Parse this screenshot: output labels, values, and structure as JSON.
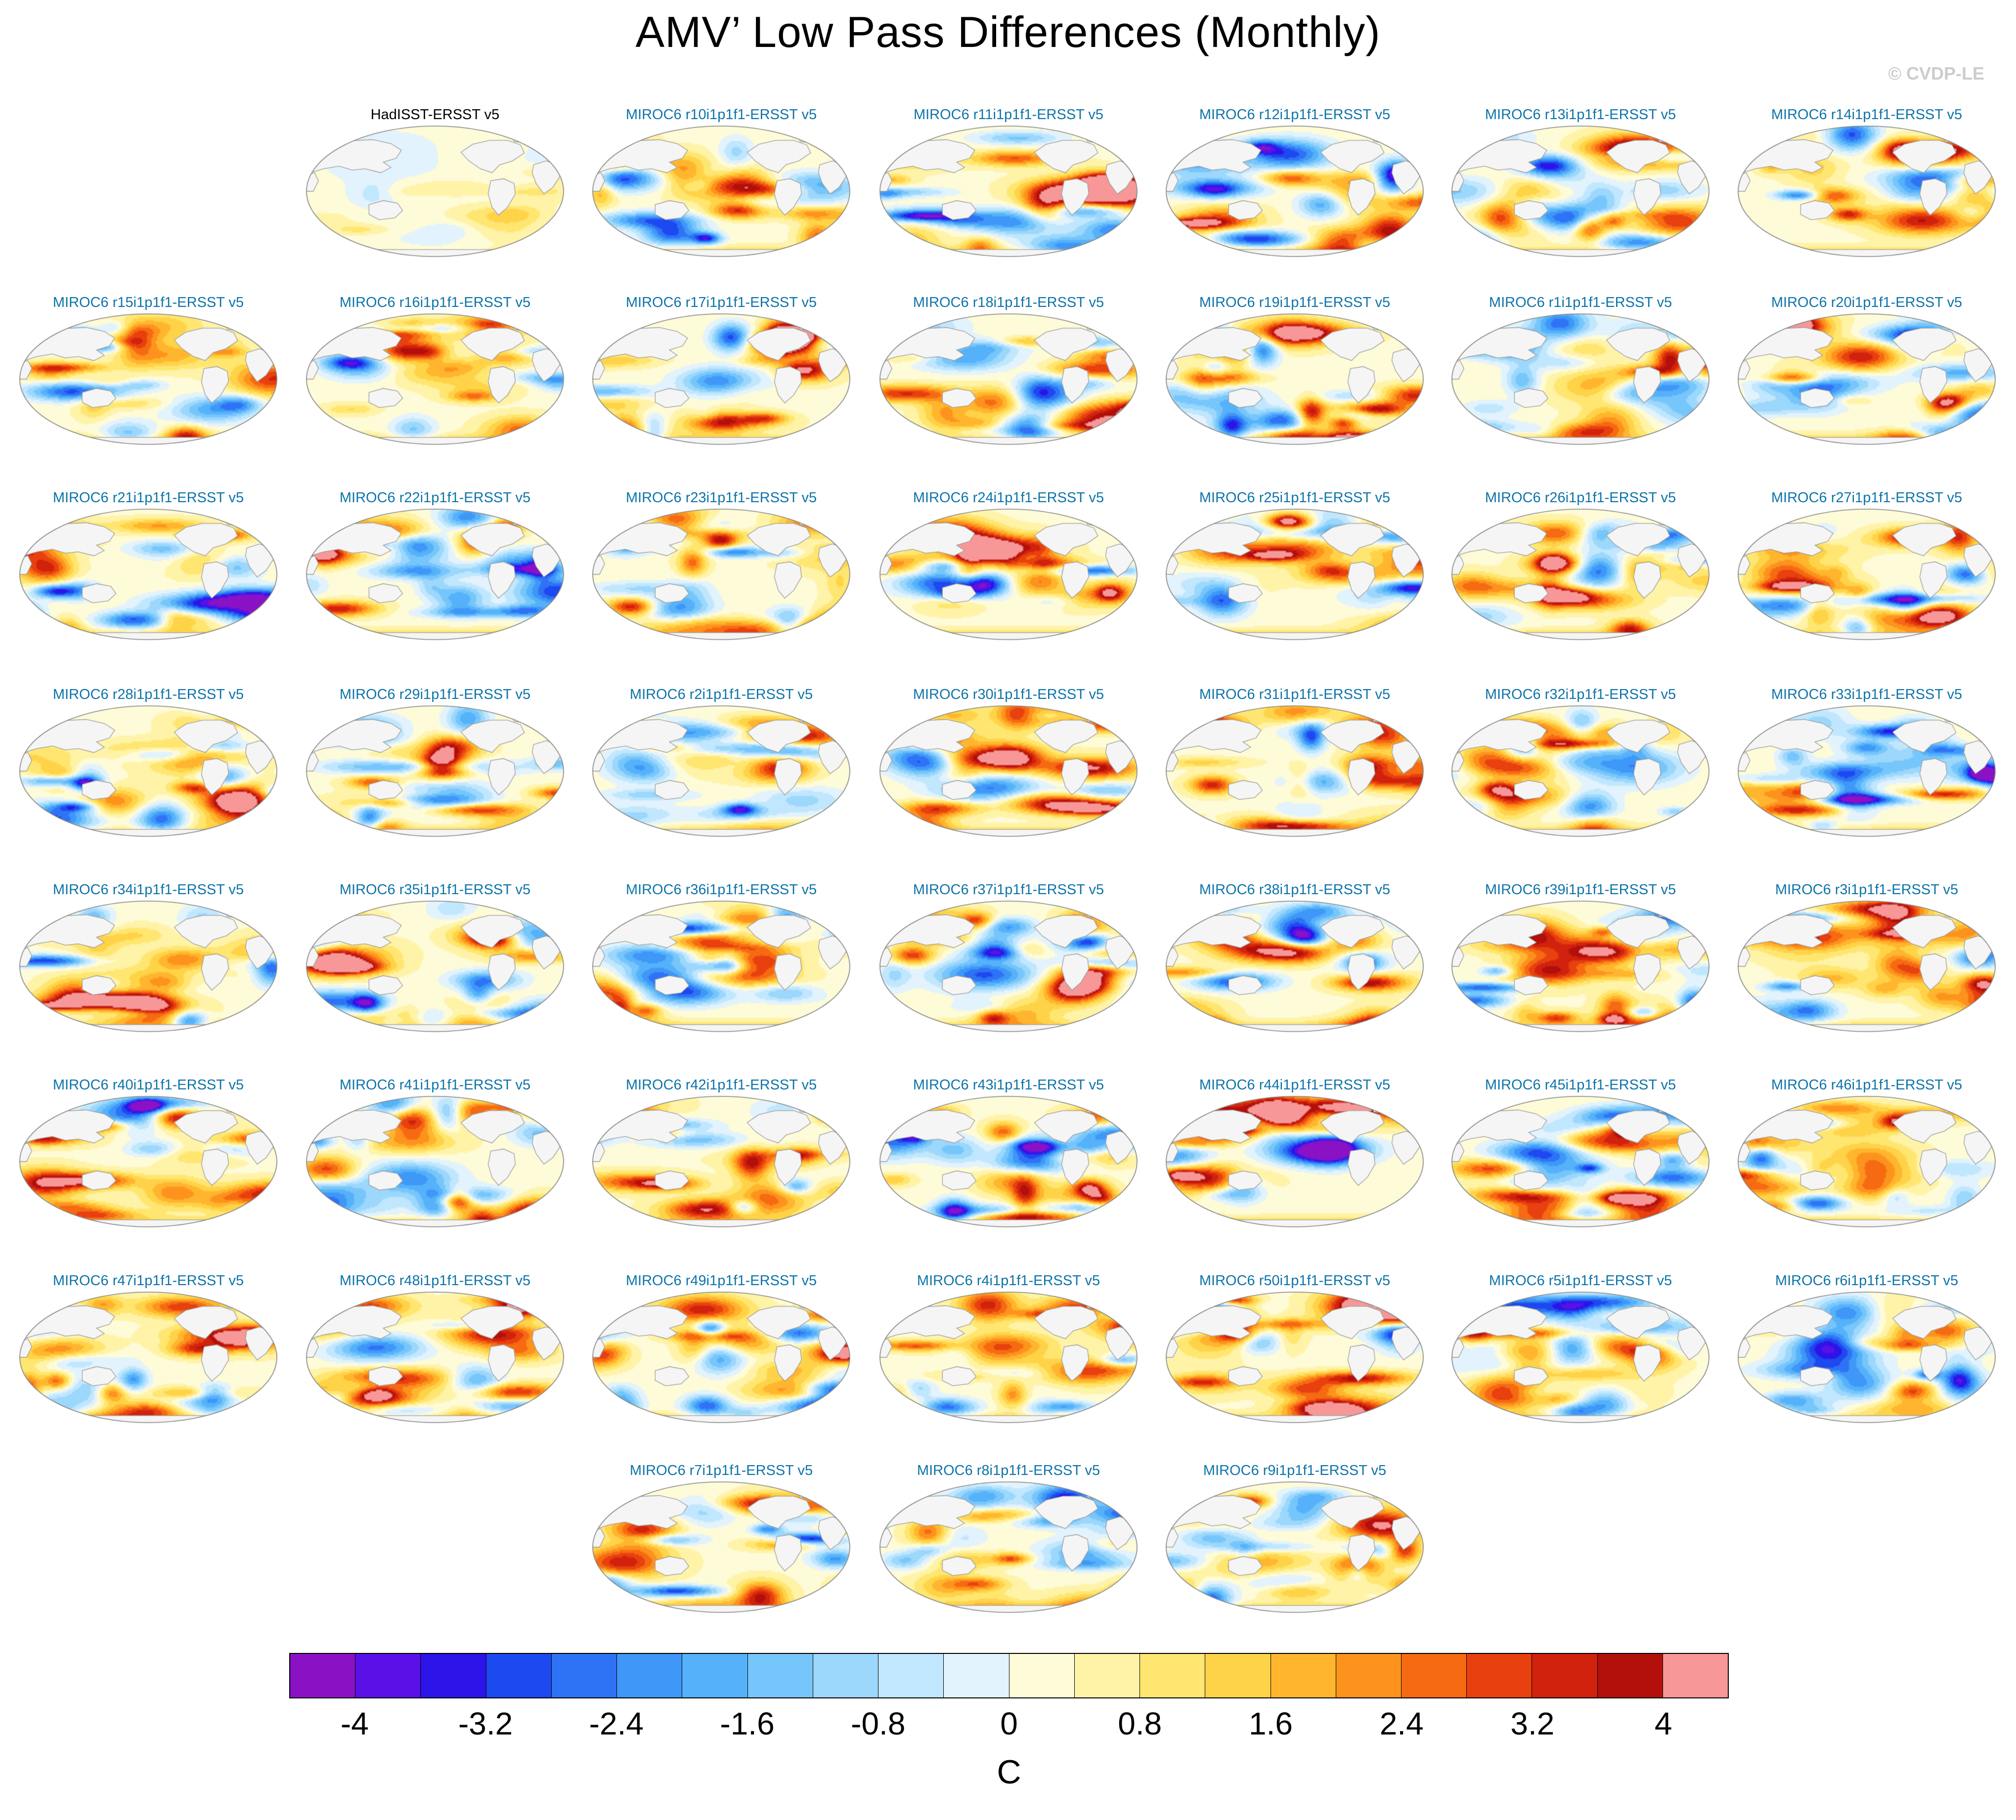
{
  "figure": {
    "title": "AMV’ Low Pass Differences (Monthly)",
    "watermark": "© CVDP-LE",
    "units_label": "C"
  },
  "chart_data": {
    "type": "heatmap",
    "subtype": "multi-panel global map grid (Robinson-style ellipse projections)",
    "title": "AMV’ Low Pass Differences (Monthly)",
    "n_panels": 51,
    "grid": {
      "columns": 7,
      "rows": 8
    },
    "units": "C",
    "panel_label_colors": {
      "observations": "#000000",
      "model": "#0e74a8"
    },
    "colorbar": {
      "label": "C",
      "tick_labels": [
        "-4",
        "-3.2",
        "-2.4",
        "-1.6",
        "-0.8",
        "0",
        "0.8",
        "1.6",
        "2.4",
        "3.2",
        "4"
      ],
      "tick_values": [
        -4,
        -3.2,
        -2.4,
        -1.6,
        -0.8,
        0,
        0.8,
        1.6,
        2.4,
        3.2,
        4
      ],
      "segment_step": 0.4,
      "range": [
        -4.4,
        4.4
      ],
      "colors": [
        "#8A12C4",
        "#5A10E6",
        "#2C14E8",
        "#1D49F0",
        "#2E73F5",
        "#3F97F8",
        "#55B2FA",
        "#77C6FB",
        "#9CD7FC",
        "#C0E7FD",
        "#E2F3FD",
        "#FEFBD8",
        "#FFF3A8",
        "#FFE670",
        "#FFD348",
        "#FFB62E",
        "#FD931D",
        "#F66A12",
        "#E8400E",
        "#D0220C",
        "#B30F0B",
        "#F79797"
      ]
    },
    "panels": [
      {
        "label": "HadISST-ERSST v5",
        "row": 1,
        "col": 2,
        "kind": "observations"
      },
      {
        "label": "MIROC6 r10i1p1f1-ERSST v5",
        "row": 1,
        "col": 3,
        "kind": "model"
      },
      {
        "label": "MIROC6 r11i1p1f1-ERSST v5",
        "row": 1,
        "col": 4,
        "kind": "model"
      },
      {
        "label": "MIROC6 r12i1p1f1-ERSST v5",
        "row": 1,
        "col": 5,
        "kind": "model"
      },
      {
        "label": "MIROC6 r13i1p1f1-ERSST v5",
        "row": 1,
        "col": 6,
        "kind": "model"
      },
      {
        "label": "MIROC6 r14i1p1f1-ERSST v5",
        "row": 1,
        "col": 7,
        "kind": "model"
      },
      {
        "label": "MIROC6 r15i1p1f1-ERSST v5",
        "row": 2,
        "col": 1,
        "kind": "model"
      },
      {
        "label": "MIROC6 r16i1p1f1-ERSST v5",
        "row": 2,
        "col": 2,
        "kind": "model"
      },
      {
        "label": "MIROC6 r17i1p1f1-ERSST v5",
        "row": 2,
        "col": 3,
        "kind": "model"
      },
      {
        "label": "MIROC6 r18i1p1f1-ERSST v5",
        "row": 2,
        "col": 4,
        "kind": "model"
      },
      {
        "label": "MIROC6 r19i1p1f1-ERSST v5",
        "row": 2,
        "col": 5,
        "kind": "model"
      },
      {
        "label": "MIROC6 r1i1p1f1-ERSST v5",
        "row": 2,
        "col": 6,
        "kind": "model"
      },
      {
        "label": "MIROC6 r20i1p1f1-ERSST v5",
        "row": 2,
        "col": 7,
        "kind": "model"
      },
      {
        "label": "MIROC6 r21i1p1f1-ERSST v5",
        "row": 3,
        "col": 1,
        "kind": "model"
      },
      {
        "label": "MIROC6 r22i1p1f1-ERSST v5",
        "row": 3,
        "col": 2,
        "kind": "model"
      },
      {
        "label": "MIROC6 r23i1p1f1-ERSST v5",
        "row": 3,
        "col": 3,
        "kind": "model"
      },
      {
        "label": "MIROC6 r24i1p1f1-ERSST v5",
        "row": 3,
        "col": 4,
        "kind": "model"
      },
      {
        "label": "MIROC6 r25i1p1f1-ERSST v5",
        "row": 3,
        "col": 5,
        "kind": "model"
      },
      {
        "label": "MIROC6 r26i1p1f1-ERSST v5",
        "row": 3,
        "col": 6,
        "kind": "model"
      },
      {
        "label": "MIROC6 r27i1p1f1-ERSST v5",
        "row": 3,
        "col": 7,
        "kind": "model"
      },
      {
        "label": "MIROC6 r28i1p1f1-ERSST v5",
        "row": 4,
        "col": 1,
        "kind": "model"
      },
      {
        "label": "MIROC6 r29i1p1f1-ERSST v5",
        "row": 4,
        "col": 2,
        "kind": "model"
      },
      {
        "label": "MIROC6 r2i1p1f1-ERSST v5",
        "row": 4,
        "col": 3,
        "kind": "model"
      },
      {
        "label": "MIROC6 r30i1p1f1-ERSST v5",
        "row": 4,
        "col": 4,
        "kind": "model"
      },
      {
        "label": "MIROC6 r31i1p1f1-ERSST v5",
        "row": 4,
        "col": 5,
        "kind": "model"
      },
      {
        "label": "MIROC6 r32i1p1f1-ERSST v5",
        "row": 4,
        "col": 6,
        "kind": "model"
      },
      {
        "label": "MIROC6 r33i1p1f1-ERSST v5",
        "row": 4,
        "col": 7,
        "kind": "model"
      },
      {
        "label": "MIROC6 r34i1p1f1-ERSST v5",
        "row": 5,
        "col": 1,
        "kind": "model"
      },
      {
        "label": "MIROC6 r35i1p1f1-ERSST v5",
        "row": 5,
        "col": 2,
        "kind": "model"
      },
      {
        "label": "MIROC6 r36i1p1f1-ERSST v5",
        "row": 5,
        "col": 3,
        "kind": "model"
      },
      {
        "label": "MIROC6 r37i1p1f1-ERSST v5",
        "row": 5,
        "col": 4,
        "kind": "model"
      },
      {
        "label": "MIROC6 r38i1p1f1-ERSST v5",
        "row": 5,
        "col": 5,
        "kind": "model"
      },
      {
        "label": "MIROC6 r39i1p1f1-ERSST v5",
        "row": 5,
        "col": 6,
        "kind": "model"
      },
      {
        "label": "MIROC6 r3i1p1f1-ERSST v5",
        "row": 5,
        "col": 7,
        "kind": "model"
      },
      {
        "label": "MIROC6 r40i1p1f1-ERSST v5",
        "row": 6,
        "col": 1,
        "kind": "model"
      },
      {
        "label": "MIROC6 r41i1p1f1-ERSST v5",
        "row": 6,
        "col": 2,
        "kind": "model"
      },
      {
        "label": "MIROC6 r42i1p1f1-ERSST v5",
        "row": 6,
        "col": 3,
        "kind": "model"
      },
      {
        "label": "MIROC6 r43i1p1f1-ERSST v5",
        "row": 6,
        "col": 4,
        "kind": "model"
      },
      {
        "label": "MIROC6 r44i1p1f1-ERSST v5",
        "row": 6,
        "col": 5,
        "kind": "model"
      },
      {
        "label": "MIROC6 r45i1p1f1-ERSST v5",
        "row": 6,
        "col": 6,
        "kind": "model"
      },
      {
        "label": "MIROC6 r46i1p1f1-ERSST v5",
        "row": 6,
        "col": 7,
        "kind": "model"
      },
      {
        "label": "MIROC6 r47i1p1f1-ERSST v5",
        "row": 7,
        "col": 1,
        "kind": "model"
      },
      {
        "label": "MIROC6 r48i1p1f1-ERSST v5",
        "row": 7,
        "col": 2,
        "kind": "model"
      },
      {
        "label": "MIROC6 r49i1p1f1-ERSST v5",
        "row": 7,
        "col": 3,
        "kind": "model"
      },
      {
        "label": "MIROC6 r4i1p1f1-ERSST v5",
        "row": 7,
        "col": 4,
        "kind": "model"
      },
      {
        "label": "MIROC6 r50i1p1f1-ERSST v5",
        "row": 7,
        "col": 5,
        "kind": "model"
      },
      {
        "label": "MIROC6 r5i1p1f1-ERSST v5",
        "row": 7,
        "col": 6,
        "kind": "model"
      },
      {
        "label": "MIROC6 r6i1p1f1-ERSST v5",
        "row": 7,
        "col": 7,
        "kind": "model"
      },
      {
        "label": "MIROC6 r7i1p1f1-ERSST v5",
        "row": 8,
        "col": 3,
        "kind": "model"
      },
      {
        "label": "MIROC6 r8i1p1f1-ERSST v5",
        "row": 8,
        "col": 4,
        "kind": "model"
      },
      {
        "label": "MIROC6 r9i1p1f1-ERSST v5",
        "row": 8,
        "col": 5,
        "kind": "model"
      }
    ]
  }
}
